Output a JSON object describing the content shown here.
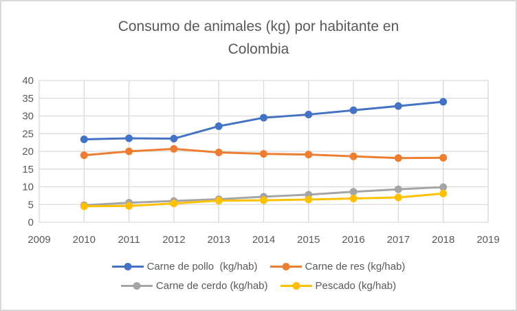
{
  "title": "Consumo de animales (kg) por habitante en Colombia",
  "frame": {
    "background": "#FFFFFF",
    "border_color": "#D9D9D9",
    "text_color": "#595959",
    "gridline_color": "#D9D9D9"
  },
  "chart_data": {
    "type": "line",
    "title": "Consumo de animales (kg) por habitante en Colombia",
    "x": [
      2010,
      2011,
      2012,
      2013,
      2014,
      2015,
      2016,
      2017,
      2018
    ],
    "x_axis_ticks": [
      2009,
      2010,
      2011,
      2012,
      2013,
      2014,
      2015,
      2016,
      2017,
      2018,
      2019
    ],
    "y_ticks": [
      0,
      5,
      10,
      15,
      20,
      25,
      30,
      35,
      40
    ],
    "ylim": [
      0,
      40
    ],
    "xlabel": "",
    "ylabel": "",
    "grid": true,
    "legend_position": "bottom",
    "marker": "circle",
    "series": [
      {
        "name": "Carne de pollo  (kg/hab)",
        "color": "#4472C4",
        "values": [
          23.4,
          23.7,
          23.6,
          27.1,
          29.5,
          30.4,
          31.6,
          32.8,
          34.0
        ]
      },
      {
        "name": "Carne de res (kg/hab)",
        "color": "#ED7D31",
        "values": [
          18.9,
          20.0,
          20.7,
          19.7,
          19.3,
          19.1,
          18.6,
          18.1,
          18.2
        ]
      },
      {
        "name": "Carne de cerdo (kg/hab)",
        "color": "#A5A5A5",
        "values": [
          4.8,
          5.5,
          6.0,
          6.5,
          7.2,
          7.8,
          8.6,
          9.3,
          9.9
        ]
      },
      {
        "name": "Pescado (kg/hab)",
        "color": "#FFC000",
        "values": [
          4.5,
          4.6,
          5.3,
          6.1,
          6.2,
          6.4,
          6.7,
          7.0,
          8.1
        ]
      }
    ]
  }
}
